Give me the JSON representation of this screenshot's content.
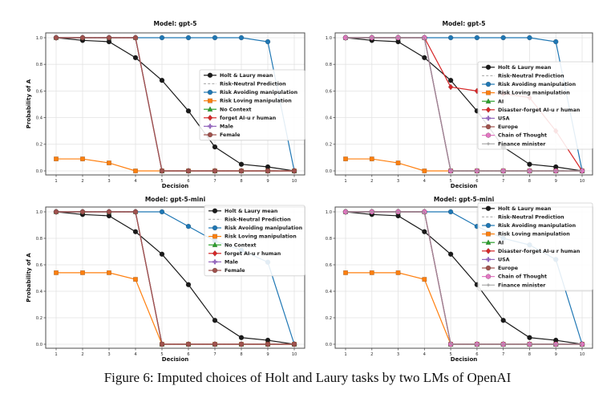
{
  "figure": {
    "caption": "Figure 6: Imputed choices of Holt and Laury tasks by two LMs of OpenAI"
  },
  "palette": {
    "mean": "#1a1a1a",
    "risk_neutral": "#b5b5b5",
    "risk_avoiding": "#1f77b4",
    "risk_loving": "#ff7f0e",
    "green": "#2ca02c",
    "red": "#d62728",
    "purple": "#9467bd",
    "brown": "#a0524d",
    "pink": "#e377c2",
    "gray": "#8f8f8f",
    "grid": "#e3e3e3",
    "spine": "#4d4d4d",
    "tick_text": "#2b2b2b"
  },
  "chart_data": [
    {
      "type": "line",
      "title": "Model: gpt-5",
      "xlabel": "Decision",
      "ylabel": "Probability of A",
      "x": [
        1,
        2,
        3,
        4,
        5,
        6,
        7,
        8,
        9,
        10
      ],
      "x_ticks": [
        "1",
        "2",
        "3",
        "4",
        "5",
        "6",
        "7",
        "8",
        "9",
        "10"
      ],
      "y_ticks": [
        "0.0",
        "0.2",
        "0.4",
        "0.6",
        "0.8",
        "1.0"
      ],
      "ylim": [
        0,
        1
      ],
      "grid": true,
      "legend_position": "center right",
      "series": [
        {
          "name": "Holt & Laury mean",
          "color": "#1a1a1a",
          "marker": "circle",
          "values": [
            1.0,
            0.98,
            0.97,
            0.85,
            0.68,
            0.45,
            0.18,
            0.05,
            0.03,
            0.0
          ]
        },
        {
          "name": "Risk-Neutral Prediction",
          "color": "#b5b5b5",
          "marker": "none",
          "dash": true,
          "values": [
            1,
            1,
            1,
            1,
            0,
            0,
            0,
            0,
            0,
            0
          ]
        },
        {
          "name": "Risk Avoiding manipulation",
          "color": "#1f77b4",
          "marker": "circle",
          "values": [
            1,
            1,
            1,
            1,
            1,
            1,
            1,
            1,
            0.97,
            0
          ]
        },
        {
          "name": "Risk Loving manipulation",
          "color": "#ff7f0e",
          "marker": "square",
          "values": [
            0.09,
            0.09,
            0.06,
            0.0,
            0.0,
            0.0,
            0.0,
            0.0,
            0.0,
            0.0
          ]
        },
        {
          "name": "No Context",
          "color": "#2ca02c",
          "marker": "triangle-up",
          "values": [
            1,
            1,
            1,
            1,
            0,
            0,
            0,
            0,
            0,
            0
          ]
        },
        {
          "name": "forget AI-u r human",
          "color": "#d62728",
          "marker": "diamond",
          "values": [
            1,
            1,
            1,
            1,
            0,
            0,
            0,
            0,
            0,
            0
          ]
        },
        {
          "name": "Male",
          "color": "#9467bd",
          "marker": "plus",
          "values": [
            1,
            1,
            1,
            1,
            0,
            0,
            0,
            0,
            0,
            0
          ]
        },
        {
          "name": "Female",
          "color": "#a0524d",
          "marker": "circle",
          "values": [
            1,
            1,
            1,
            1,
            0,
            0,
            0,
            0,
            0,
            0
          ]
        }
      ]
    },
    {
      "type": "line",
      "title": "Model: gpt-5",
      "xlabel": "Decision",
      "ylabel": null,
      "x": [
        1,
        2,
        3,
        4,
        5,
        6,
        7,
        8,
        9,
        10
      ],
      "x_ticks": [
        "1",
        "2",
        "3",
        "4",
        "5",
        "6",
        "7",
        "8",
        "9",
        "10"
      ],
      "y_ticks": [
        "0.0",
        "0.2",
        "0.4",
        "0.6",
        "0.8",
        "1.0"
      ],
      "ylim": [
        0,
        1
      ],
      "grid": true,
      "legend_position": "center right",
      "series": [
        {
          "name": "Holt & Laury mean",
          "color": "#1a1a1a",
          "marker": "circle",
          "values": [
            1.0,
            0.98,
            0.97,
            0.85,
            0.68,
            0.45,
            0.18,
            0.05,
            0.03,
            0.0
          ]
        },
        {
          "name": "Risk-Neutral Prediction",
          "color": "#b5b5b5",
          "marker": "none",
          "dash": true,
          "values": [
            1,
            1,
            1,
            1,
            0,
            0,
            0,
            0,
            0,
            0
          ]
        },
        {
          "name": "Risk Avoiding manipulation",
          "color": "#1f77b4",
          "marker": "circle",
          "values": [
            1,
            1,
            1,
            1,
            1,
            1,
            1,
            1,
            0.97,
            0
          ]
        },
        {
          "name": "Risk Loving manipulation",
          "color": "#ff7f0e",
          "marker": "square",
          "values": [
            0.09,
            0.09,
            0.06,
            0.0,
            0.0,
            0.0,
            0.0,
            0.0,
            0.0,
            0.0
          ]
        },
        {
          "name": "AI",
          "color": "#2ca02c",
          "marker": "triangle-up",
          "values": [
            1,
            1,
            1,
            1,
            0,
            0,
            0,
            0,
            0,
            0
          ]
        },
        {
          "name": "Disaster-forget AI-u r human",
          "color": "#d62728",
          "marker": "diamond",
          "values": [
            1,
            1,
            1,
            1,
            0.63,
            0.6,
            0.58,
            0.55,
            0.3,
            0.0
          ]
        },
        {
          "name": "USA",
          "color": "#9467bd",
          "marker": "plus",
          "values": [
            1,
            1,
            1,
            1,
            0,
            0,
            0,
            0,
            0,
            0
          ]
        },
        {
          "name": "Europe",
          "color": "#a0524d",
          "marker": "circle",
          "values": [
            1,
            1,
            1,
            1,
            0,
            0,
            0,
            0,
            0,
            0
          ]
        },
        {
          "name": "Chain of Thought",
          "color": "#e377c2",
          "marker": "hexagon",
          "values": [
            1,
            1,
            1,
            1,
            0,
            0,
            0,
            0,
            0,
            0
          ]
        },
        {
          "name": "Finance minister",
          "color": "#8f8f8f",
          "marker": "tick",
          "lw": 0.9,
          "values": [
            1,
            1,
            1,
            1,
            0,
            0,
            0,
            0,
            0,
            0
          ]
        }
      ]
    },
    {
      "type": "line",
      "title": "Model: gpt-5-mini",
      "xlabel": "Decision",
      "ylabel": "Probability of A",
      "x": [
        1,
        2,
        3,
        4,
        5,
        6,
        7,
        8,
        9,
        10
      ],
      "x_ticks": [
        "1",
        "2",
        "3",
        "4",
        "5",
        "6",
        "7",
        "8",
        "9",
        "10"
      ],
      "y_ticks": [
        "0.0",
        "0.2",
        "0.4",
        "0.6",
        "0.8",
        "1.0"
      ],
      "ylim": [
        0,
        1
      ],
      "grid": true,
      "legend_position": "upper right",
      "series": [
        {
          "name": "Holt & Laury mean",
          "color": "#1a1a1a",
          "marker": "circle",
          "values": [
            1.0,
            0.98,
            0.97,
            0.85,
            0.68,
            0.45,
            0.18,
            0.05,
            0.03,
            0.0
          ]
        },
        {
          "name": "Risk-Neutral Prediction",
          "color": "#b5b5b5",
          "marker": "none",
          "dash": true,
          "values": [
            1,
            1,
            1,
            1,
            0,
            0,
            0,
            0,
            0,
            0
          ]
        },
        {
          "name": "Risk Avoiding manipulation",
          "color": "#1f77b4",
          "marker": "circle",
          "values": [
            1,
            1,
            1,
            1,
            1,
            0.89,
            0.78,
            0.71,
            0.62,
            0
          ]
        },
        {
          "name": "Risk Loving manipulation",
          "color": "#ff7f0e",
          "marker": "square",
          "values": [
            0.54,
            0.54,
            0.54,
            0.49,
            0.0,
            0.0,
            0.0,
            0.0,
            0.0,
            0.0
          ]
        },
        {
          "name": "No Context",
          "color": "#2ca02c",
          "marker": "triangle-up",
          "values": [
            1,
            1,
            1,
            1,
            0,
            0,
            0,
            0,
            0,
            0
          ]
        },
        {
          "name": "forget AI-u r human",
          "color": "#d62728",
          "marker": "diamond",
          "values": [
            1,
            1,
            1,
            1,
            0,
            0,
            0,
            0,
            0,
            0
          ]
        },
        {
          "name": "Male",
          "color": "#9467bd",
          "marker": "plus",
          "values": [
            1,
            1,
            1,
            1,
            0,
            0,
            0,
            0,
            0,
            0
          ]
        },
        {
          "name": "Female",
          "color": "#a0524d",
          "marker": "circle",
          "values": [
            1,
            1,
            1,
            1,
            0,
            0,
            0,
            0,
            0,
            0
          ]
        }
      ]
    },
    {
      "type": "line",
      "title": "Model: gpt-5-mini",
      "xlabel": "Decision",
      "ylabel": null,
      "x": [
        1,
        2,
        3,
        4,
        5,
        6,
        7,
        8,
        9,
        10
      ],
      "x_ticks": [
        "1",
        "2",
        "3",
        "4",
        "5",
        "6",
        "7",
        "8",
        "9",
        "10"
      ],
      "y_ticks": [
        "0.0",
        "0.2",
        "0.4",
        "0.6",
        "0.8",
        "1.0"
      ],
      "ylim": [
        0,
        1
      ],
      "grid": true,
      "legend_position": "upper right",
      "series": [
        {
          "name": "Holt & Laury mean",
          "color": "#1a1a1a",
          "marker": "circle",
          "values": [
            1.0,
            0.98,
            0.97,
            0.85,
            0.68,
            0.45,
            0.18,
            0.05,
            0.03,
            0.0
          ]
        },
        {
          "name": "Risk-Neutral Prediction",
          "color": "#b5b5b5",
          "marker": "none",
          "dash": true,
          "values": [
            1,
            1,
            1,
            1,
            0,
            0,
            0,
            0,
            0,
            0
          ]
        },
        {
          "name": "Risk Avoiding manipulation",
          "color": "#1f77b4",
          "marker": "circle",
          "values": [
            1,
            1,
            1,
            1,
            1,
            0.89,
            0.8,
            0.75,
            0.64,
            0
          ]
        },
        {
          "name": "Risk Loving manipulation",
          "color": "#ff7f0e",
          "marker": "square",
          "values": [
            0.54,
            0.54,
            0.54,
            0.49,
            0.0,
            0.0,
            0.0,
            0.0,
            0.0,
            0.0
          ]
        },
        {
          "name": "AI",
          "color": "#2ca02c",
          "marker": "triangle-up",
          "values": [
            1,
            1,
            1,
            1,
            0,
            0,
            0,
            0,
            0,
            0
          ]
        },
        {
          "name": "Disaster-forget AI-u r human",
          "color": "#d62728",
          "marker": "diamond",
          "values": [
            1,
            1,
            1,
            1,
            0,
            0,
            0,
            0,
            0,
            0
          ]
        },
        {
          "name": "USA",
          "color": "#9467bd",
          "marker": "plus",
          "values": [
            1,
            1,
            1,
            1,
            0,
            0,
            0,
            0,
            0,
            0
          ]
        },
        {
          "name": "Europe",
          "color": "#a0524d",
          "marker": "circle",
          "values": [
            1,
            1,
            1,
            1,
            0,
            0,
            0,
            0,
            0,
            0
          ]
        },
        {
          "name": "Chain of Thought",
          "color": "#e377c2",
          "marker": "hexagon",
          "values": [
            1,
            1,
            1,
            1,
            0,
            0,
            0,
            0,
            0,
            0
          ]
        },
        {
          "name": "Finance minister",
          "color": "#8f8f8f",
          "marker": "tick",
          "lw": 0.9,
          "values": [
            1,
            1,
            1,
            1,
            0,
            0,
            0,
            0,
            0,
            0
          ]
        }
      ]
    }
  ]
}
